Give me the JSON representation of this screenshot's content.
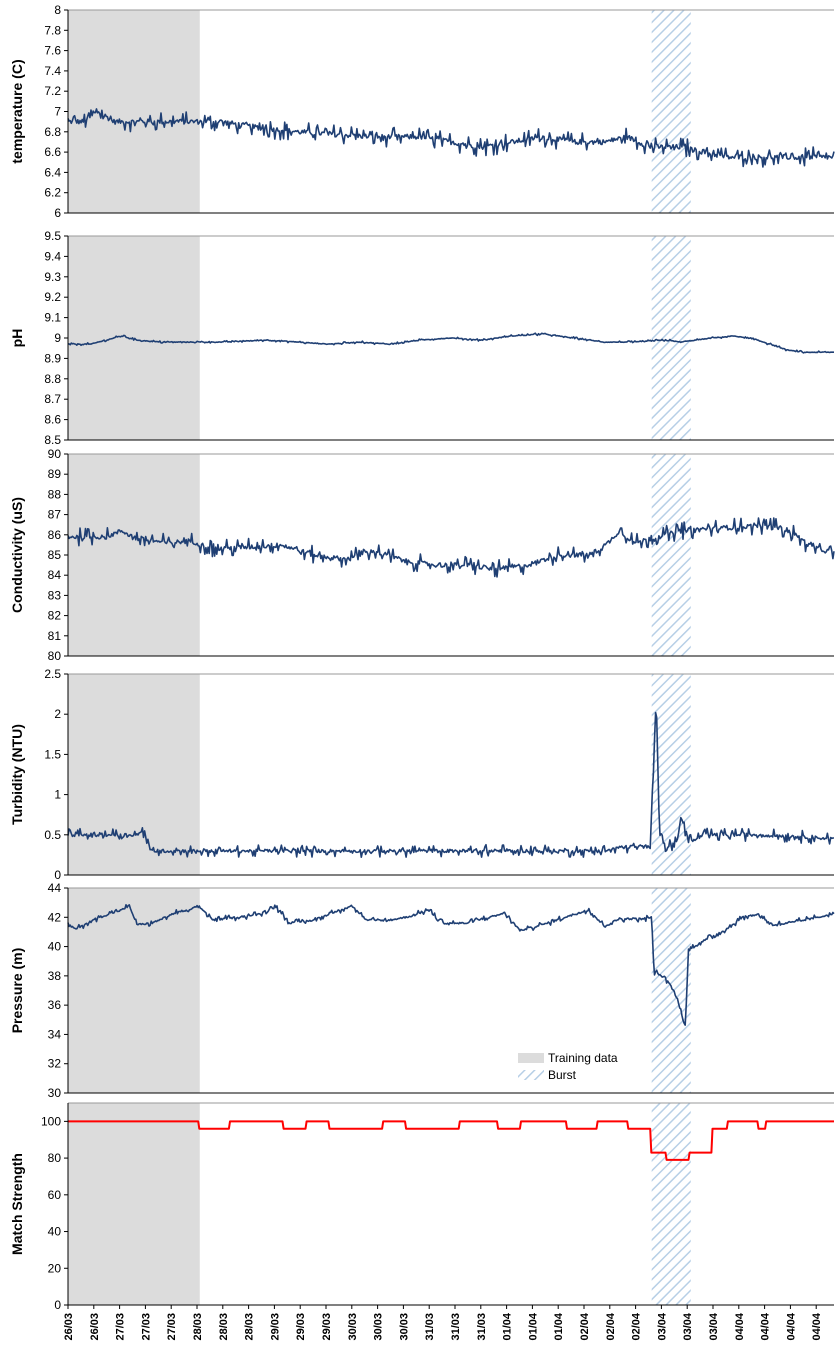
{
  "chart_data": [
    {
      "type": "line",
      "ylabel": "temperature (C)",
      "ylim": [
        6,
        8
      ],
      "yticks": [
        "6",
        "6.2",
        "6.4",
        "6.6",
        "6.8",
        "7",
        "7.2",
        "7.4",
        "7.6",
        "7.8",
        "8"
      ],
      "series": [
        {
          "color": "#1f3f73",
          "noise": 0.1,
          "points": [
            [
              0,
              6.9
            ],
            [
              2,
              6.9
            ],
            [
              4,
              7.0
            ],
            [
              6,
              6.9
            ],
            [
              10,
              6.9
            ],
            [
              20,
              6.9
            ],
            [
              24,
              6.85
            ],
            [
              30,
              6.8
            ],
            [
              40,
              6.75
            ],
            [
              46,
              6.75
            ],
            [
              50,
              6.7
            ],
            [
              54,
              6.65
            ],
            [
              58,
              6.7
            ],
            [
              62,
              6.75
            ],
            [
              66,
              6.7
            ],
            [
              70,
              6.7
            ],
            [
              73,
              6.75
            ],
            [
              76,
              6.65
            ],
            [
              80,
              6.65
            ],
            [
              86,
              6.55
            ],
            [
              90,
              6.55
            ],
            [
              100,
              6.55
            ]
          ]
        }
      ]
    },
    {
      "type": "line",
      "ylabel": "pH",
      "ylim": [
        8.5,
        9.5
      ],
      "yticks": [
        "8.5",
        "8.6",
        "8.7",
        "8.8",
        "8.9",
        "9",
        "9.1",
        "9.2",
        "9.3",
        "9.4",
        "9.5"
      ],
      "series": [
        {
          "color": "#1f3f73",
          "noise": 0.006,
          "points": [
            [
              0,
              8.97
            ],
            [
              3,
              8.97
            ],
            [
              5,
              8.99
            ],
            [
              7,
              9.01
            ],
            [
              9,
              8.99
            ],
            [
              12,
              8.98
            ],
            [
              16,
              8.98
            ],
            [
              20,
              8.98
            ],
            [
              26,
              8.99
            ],
            [
              30,
              8.98
            ],
            [
              34,
              8.97
            ],
            [
              38,
              8.98
            ],
            [
              42,
              8.97
            ],
            [
              46,
              8.99
            ],
            [
              50,
              9.0
            ],
            [
              54,
              8.99
            ],
            [
              58,
              9.01
            ],
            [
              62,
              9.02
            ],
            [
              66,
              9.0
            ],
            [
              70,
              8.98
            ],
            [
              74,
              8.98
            ],
            [
              78,
              8.99
            ],
            [
              80,
              8.98
            ],
            [
              84,
              9.0
            ],
            [
              87,
              9.01
            ],
            [
              90,
              8.99
            ],
            [
              94,
              8.94
            ],
            [
              96,
              8.93
            ],
            [
              100,
              8.93
            ]
          ]
        }
      ]
    },
    {
      "type": "line",
      "ylabel": "Conductivity (uS)",
      "ylim": [
        80,
        90
      ],
      "yticks": [
        "80",
        "81",
        "82",
        "83",
        "84",
        "85",
        "86",
        "87",
        "88",
        "89",
        "90"
      ],
      "series": [
        {
          "color": "#1f3f73",
          "noise": 0.45,
          "points": [
            [
              0,
              85.9
            ],
            [
              5,
              85.9
            ],
            [
              7,
              86.2
            ],
            [
              9,
              85.8
            ],
            [
              13,
              85.6
            ],
            [
              16,
              85.7
            ],
            [
              19,
              85.3
            ],
            [
              24,
              85.4
            ],
            [
              28,
              85.5
            ],
            [
              32,
              85.0
            ],
            [
              36,
              84.8
            ],
            [
              40,
              85.2
            ],
            [
              44,
              84.7
            ],
            [
              48,
              84.5
            ],
            [
              52,
              84.5
            ],
            [
              56,
              84.3
            ],
            [
              60,
              84.5
            ],
            [
              64,
              85.0
            ],
            [
              68,
              85.0
            ],
            [
              70,
              85.4
            ],
            [
              72,
              86.2
            ],
            [
              74,
              85.6
            ],
            [
              78,
              86.0
            ],
            [
              80,
              86.2
            ],
            [
              84,
              86.3
            ],
            [
              88,
              86.4
            ],
            [
              92,
              86.5
            ],
            [
              95,
              86.0
            ],
            [
              97,
              85.4
            ],
            [
              100,
              85.1
            ]
          ]
        }
      ]
    },
    {
      "type": "line",
      "ylabel": "Turbidity (NTU)",
      "ylim": [
        0,
        2.5
      ],
      "yticks": [
        "0",
        "0.5",
        "1",
        "1.5",
        "2",
        "2.5"
      ],
      "series": [
        {
          "color": "#1f3f73",
          "noise": 0.08,
          "points": [
            [
              0,
              0.5
            ],
            [
              9,
              0.5
            ],
            [
              10,
              0.55
            ],
            [
              10.6,
              0.3
            ],
            [
              20,
              0.3
            ],
            [
              30,
              0.3
            ],
            [
              40,
              0.3
            ],
            [
              50,
              0.3
            ],
            [
              60,
              0.3
            ],
            [
              70,
              0.3
            ],
            [
              73,
              0.35
            ],
            [
              76,
              0.35
            ],
            [
              76.8,
              2.2
            ],
            [
              77.2,
              0.6
            ],
            [
              78,
              0.35
            ],
            [
              79.5,
              0.4
            ],
            [
              80,
              0.72
            ],
            [
              80.8,
              0.5
            ],
            [
              81.5,
              0.42
            ],
            [
              83,
              0.5
            ],
            [
              90,
              0.5
            ],
            [
              95,
              0.48
            ],
            [
              100,
              0.45
            ]
          ]
        }
      ]
    },
    {
      "type": "line",
      "ylabel": "Pressure (m)",
      "ylim": [
        30,
        44
      ],
      "yticks": [
        "30",
        "32",
        "34",
        "36",
        "38",
        "40",
        "42",
        "44"
      ],
      "series": [
        {
          "color": "#1f3f73",
          "noise": 0.22,
          "points": [
            [
              0,
              41.5
            ],
            [
              1,
              41.2
            ],
            [
              4,
              42.0
            ],
            [
              7,
              42.5
            ],
            [
              8,
              42.8
            ],
            [
              9,
              41.5
            ],
            [
              11,
              41.6
            ],
            [
              14,
              42.3
            ],
            [
              16,
              42.5
            ],
            [
              17,
              42.8
            ],
            [
              19,
              41.8
            ],
            [
              22,
              42.0
            ],
            [
              25,
              42.2
            ],
            [
              27,
              42.8
            ],
            [
              29,
              41.6
            ],
            [
              32,
              41.8
            ],
            [
              35,
              42.4
            ],
            [
              37,
              42.8
            ],
            [
              39,
              41.8
            ],
            [
              42,
              41.8
            ],
            [
              45,
              42.1
            ],
            [
              47,
              42.5
            ],
            [
              49,
              41.6
            ],
            [
              52,
              41.6
            ],
            [
              55,
              42.0
            ],
            [
              57,
              42.3
            ],
            [
              59,
              41.1
            ],
            [
              62,
              41.5
            ],
            [
              66,
              42.2
            ],
            [
              68,
              42.5
            ],
            [
              70,
              41.4
            ],
            [
              72,
              41.9
            ],
            [
              75,
              41.9
            ],
            [
              76.2,
              42.0
            ],
            [
              76.5,
              38.3
            ],
            [
              77.5,
              38.0
            ],
            [
              78.5,
              37.5
            ],
            [
              79.5,
              36.5
            ],
            [
              80.3,
              35.0
            ],
            [
              80.6,
              34.6
            ],
            [
              81,
              39.8
            ],
            [
              83,
              40.4
            ],
            [
              86,
              41.2
            ],
            [
              88,
              42.0
            ],
            [
              90,
              42.2
            ],
            [
              92,
              41.5
            ],
            [
              94,
              41.6
            ],
            [
              96,
              41.8
            ],
            [
              98,
              42.0
            ],
            [
              100,
              42.3
            ]
          ]
        }
      ]
    },
    {
      "type": "line",
      "ylabel": "Match Strength",
      "ylim": [
        0,
        110
      ],
      "yticks": [
        "0",
        "20",
        "40",
        "60",
        "80",
        "100"
      ],
      "series": [
        {
          "color": "#ff0000",
          "noise": 0,
          "points": [
            [
              0,
              100
            ],
            [
              17,
              100
            ],
            [
              17.05,
              96
            ],
            [
              21,
              96
            ],
            [
              21.05,
              100
            ],
            [
              28,
              100
            ],
            [
              28.05,
              96
            ],
            [
              31,
              96
            ],
            [
              31.05,
              100
            ],
            [
              34,
              100
            ],
            [
              34.05,
              96
            ],
            [
              41,
              96
            ],
            [
              41.05,
              100
            ],
            [
              44,
              100
            ],
            [
              44.05,
              96
            ],
            [
              51,
              96
            ],
            [
              51.05,
              100
            ],
            [
              56,
              100
            ],
            [
              56.05,
              96
            ],
            [
              59,
              96
            ],
            [
              59.05,
              100
            ],
            [
              65,
              100
            ],
            [
              65.05,
              96
            ],
            [
              69,
              96
            ],
            [
              69.05,
              100
            ],
            [
              73,
              100
            ],
            [
              73.05,
              96
            ],
            [
              76,
              96
            ],
            [
              76.05,
              83
            ],
            [
              78,
              83
            ],
            [
              78.05,
              79
            ],
            [
              81,
              79
            ],
            [
              81.05,
              83
            ],
            [
              84,
              83
            ],
            [
              84.05,
              96
            ],
            [
              86,
              96
            ],
            [
              86.05,
              100
            ],
            [
              90,
              100
            ],
            [
              90.05,
              96
            ],
            [
              91,
              96
            ],
            [
              91.05,
              100
            ],
            [
              100,
              100
            ]
          ]
        }
      ]
    }
  ],
  "shared": {
    "training_span": [
      0,
      17.2
    ],
    "burst_span": [
      76.2,
      81.3
    ],
    "colors": {
      "line": "#1f3f73",
      "match": "#ff0000",
      "training": "#dcdcdc",
      "burst": "#b7cfe6"
    }
  },
  "xaxis": {
    "labels": [
      "26/03",
      "26/03",
      "27/03",
      "27/03",
      "27/03",
      "28/03",
      "28/03",
      "28/03",
      "29/03",
      "29/03",
      "29/03",
      "30/03",
      "30/03",
      "30/03",
      "31/03",
      "31/03",
      "31/03",
      "01/04",
      "01/04",
      "01/04",
      "02/04",
      "02/04",
      "02/04",
      "03/04",
      "03/04",
      "03/04",
      "04/04",
      "04/04",
      "04/04",
      "04/04"
    ]
  },
  "legend": {
    "items": [
      {
        "label": "Training data",
        "style": "solid",
        "color": "#dcdcdc"
      },
      {
        "label": "Burst",
        "style": "hatch",
        "color": "#b7cfe6"
      }
    ]
  }
}
